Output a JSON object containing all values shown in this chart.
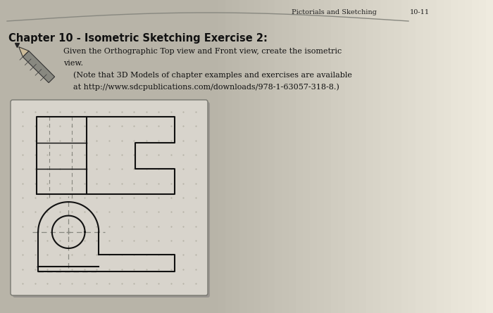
{
  "bg_left_color": "#b8b4a8",
  "bg_right_color": "#d8d4cc",
  "page_bg": "#dedad2",
  "header_text": "Pictorials and Sketching",
  "header_page": "10-11",
  "title": "Chapter 10 - Isometric Sketching Exercise 2:",
  "body_line1": "Given the Orthographic Top view and Front view, create the isometric",
  "body_line2": "view.",
  "body_line3": "    (Note that 3D Models of chapter examples and exercises are available",
  "body_line4": "    at http://www.sdcpublications.com/downloads/978-1-63057-318-8.)",
  "dot_color": "#b0ada0",
  "line_color": "#111111",
  "centerline_color": "#888880",
  "hidden_color": "#333333"
}
